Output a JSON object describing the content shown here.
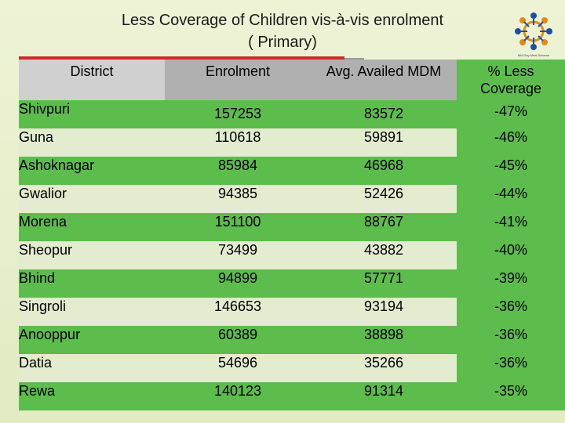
{
  "slide": {
    "title": "Less Coverage of Children vis-à-vis enrolment",
    "subtitle": "( Primary)",
    "logo_caption": "Mid Day Meal Scheme"
  },
  "colors": {
    "accent_red": "#cc2a2a",
    "row_green": "#5cbc4c",
    "header_grey": "#b0b0b0"
  },
  "table": {
    "headers": [
      "District",
      "Enrolment",
      "Avg. Availed MDM",
      "% Less Coverage"
    ],
    "rows": [
      {
        "district": "Shivpuri",
        "enrolment": "157253",
        "mdm": "83572",
        "less": "-47%"
      },
      {
        "district": "Guna",
        "enrolment": "110618",
        "mdm": "59891",
        "less": "-46%"
      },
      {
        "district": "Ashoknagar",
        "enrolment": "85984",
        "mdm": "46968",
        "less": "-45%"
      },
      {
        "district": "Gwalior",
        "enrolment": "94385",
        "mdm": "52426",
        "less": "-44%"
      },
      {
        "district": "Morena",
        "enrolment": "151100",
        "mdm": "88767",
        "less": "-41%"
      },
      {
        "district": "Sheopur",
        "enrolment": "73499",
        "mdm": "43882",
        "less": "-40%"
      },
      {
        "district": "Bhind",
        "enrolment": "94899",
        "mdm": "57771",
        "less": "-39%"
      },
      {
        "district": "Singroli",
        "enrolment": "146653",
        "mdm": "93194",
        "less": "-36%"
      },
      {
        "district": "Anooppur",
        "enrolment": "60389",
        "mdm": "38898",
        "less": "-36%"
      },
      {
        "district": "Datia",
        "enrolment": "54696",
        "mdm": "35266",
        "less": "-36%"
      },
      {
        "district": "Rewa",
        "enrolment": "140123",
        "mdm": "91314",
        "less": "-35%"
      }
    ]
  }
}
